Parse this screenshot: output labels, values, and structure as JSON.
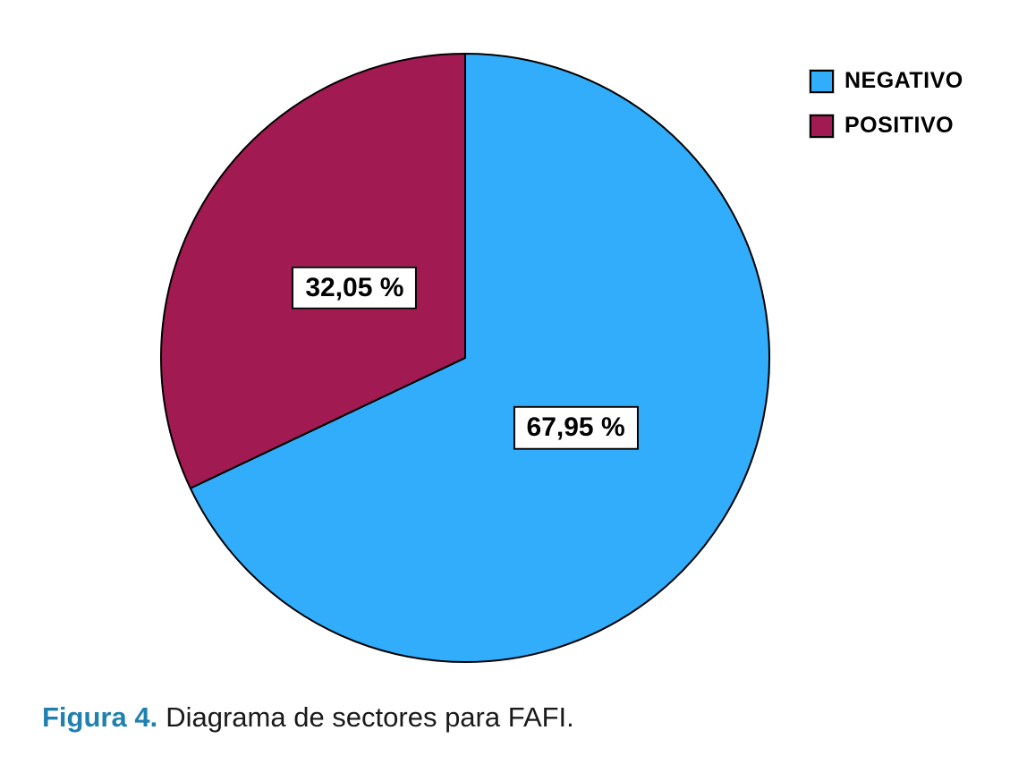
{
  "chart_data": {
    "type": "pie",
    "title": "",
    "start_angle": "top",
    "direction": "clockwise",
    "legend_position": "top-right",
    "slice_border_color": "#000000",
    "label_box": {
      "background": "#FFFFFF",
      "border_color": "#000000"
    },
    "slices": [
      {
        "label": "NEGATIVO",
        "value": 67.95,
        "display": "67,95 %",
        "color": "#31ADFB"
      },
      {
        "label": "POSITIVO",
        "value": 32.05,
        "display": "32,05 %",
        "color": "#A11A51"
      }
    ]
  },
  "caption": {
    "label": "Figura 4.",
    "text": "Diagrama de sectores para FAFI.",
    "label_color": "#2080B0"
  }
}
